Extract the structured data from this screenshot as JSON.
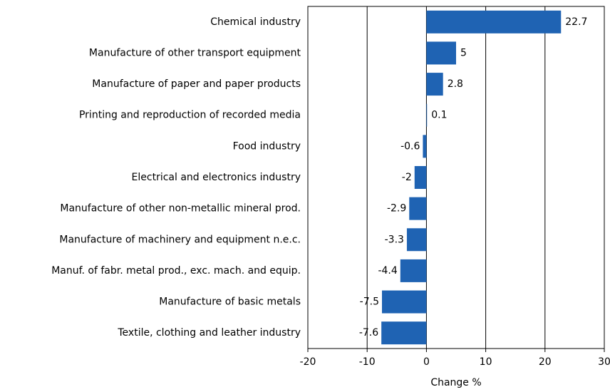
{
  "chart_data": {
    "type": "barh",
    "categories": [
      "Chemical industry",
      "Manufacture of other transport equipment",
      "Manufacture of paper and paper products",
      "Printing and reproduction of recorded media",
      "Food industry",
      "Electrical and electronics industry",
      "Manufacture of other non-metallic mineral prod.",
      "Manufacture of machinery and equipment n.e.c.",
      "Manuf. of fabr. metal prod., exc. mach. and equip.",
      "Manufacture of basic metals",
      "Textile, clothing and leather industry"
    ],
    "values": [
      22.7,
      5,
      2.8,
      0.1,
      -0.6,
      -2,
      -2.9,
      -3.3,
      -4.4,
      -7.5,
      -7.6
    ],
    "color": "#1f63b3",
    "xlabel": "Change %",
    "xlim": [
      -20,
      30
    ],
    "xticks": [
      -20,
      -10,
      0,
      10,
      20,
      30
    ],
    "grid": true
  }
}
